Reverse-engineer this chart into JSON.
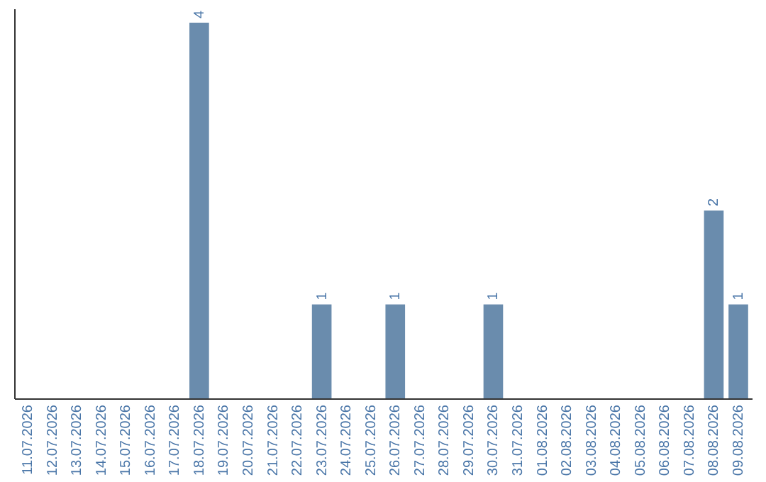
{
  "chart_data": {
    "type": "bar",
    "categories": [
      "11.07.2026",
      "12.07.2026",
      "13.07.2026",
      "14.07.2026",
      "15.07.2026",
      "16.07.2026",
      "17.07.2026",
      "18.07.2026",
      "19.07.2026",
      "20.07.2026",
      "21.07.2026",
      "22.07.2026",
      "23.07.2026",
      "24.07.2026",
      "25.07.2026",
      "26.07.2026",
      "27.07.2026",
      "28.07.2026",
      "29.07.2026",
      "30.07.2026",
      "31.07.2026",
      "01.08.2026",
      "02.08.2026",
      "03.08.2026",
      "04.08.2026",
      "05.08.2026",
      "06.08.2026",
      "07.08.2026",
      "08.08.2026",
      "09.08.2026"
    ],
    "values": [
      0,
      0,
      0,
      0,
      0,
      0,
      0,
      4,
      0,
      0,
      0,
      0,
      1,
      0,
      0,
      1,
      0,
      0,
      0,
      1,
      0,
      0,
      0,
      0,
      0,
      0,
      0,
      0,
      2,
      1
    ],
    "value_labels": [
      null,
      null,
      null,
      null,
      null,
      null,
      null,
      "4",
      null,
      null,
      null,
      null,
      "1",
      null,
      null,
      "1",
      null,
      null,
      null,
      "1",
      null,
      null,
      null,
      null,
      null,
      null,
      null,
      null,
      "2",
      "1"
    ],
    "color": "#6a8cad",
    "ylim": [
      0,
      4.15
    ],
    "tick_labels": "x"
  }
}
